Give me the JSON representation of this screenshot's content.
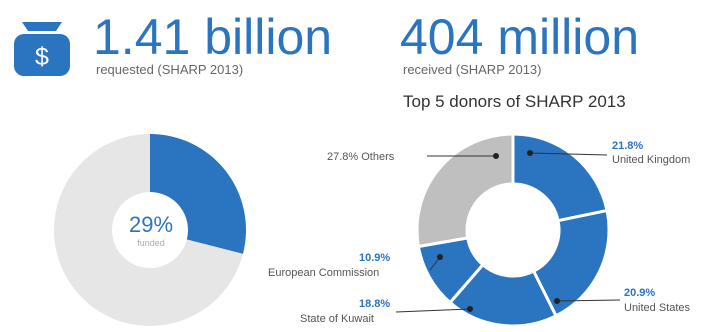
{
  "colors": {
    "accent": "#2b74c0",
    "muted": "#e6e6e6",
    "others": "#bfbfbf",
    "text": "#444444"
  },
  "icon": {
    "name": "money-bag-icon",
    "glyph": "$"
  },
  "requested": {
    "value": "1.41 billion",
    "label": "requested (SHARP 2013)"
  },
  "received": {
    "value": "404 million",
    "label": "received (SHARP 2013)"
  },
  "funded_chart": {
    "percent_text": "29%",
    "caption": "funded"
  },
  "donors": {
    "title": "Top 5 donors of SHARP 2013"
  },
  "chart_data": [
    {
      "type": "pie",
      "slices": [
        {
          "name": "funded",
          "value": 29
        },
        {
          "name": "",
          "value": 71
        }
      ]
    },
    {
      "type": "pie",
      "title": "Top 5 donors of SHARP 2013",
      "slices": [
        {
          "name": "United Kingdom",
          "value": 21.8,
          "label": "21.8%"
        },
        {
          "name": "United States",
          "value": 20.9,
          "label": "20.9%"
        },
        {
          "name": "State of Kuwait",
          "value": 18.8,
          "label": "18.8%"
        },
        {
          "name": "European Commission",
          "value": 10.9,
          "label": "10.9%"
        },
        {
          "name": "Others",
          "value": 27.8,
          "label": "27.8% Others"
        }
      ]
    }
  ]
}
